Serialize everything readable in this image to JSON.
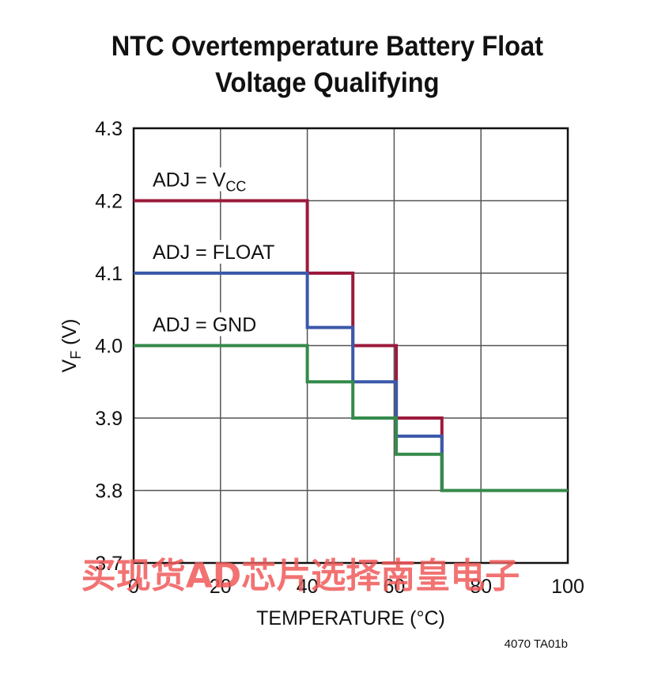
{
  "chart_data": {
    "type": "line",
    "title_lines": [
      "NTC Overtemperature Battery Float",
      "Voltage Qualifying"
    ],
    "xlabel": "TEMPERATURE (°C)",
    "ylabel_main": "V",
    "ylabel_sub": "F",
    "ylabel_unit": " (V)",
    "xlim": [
      0,
      100
    ],
    "ylim": [
      3.7,
      4.3
    ],
    "xticks": [
      0,
      20,
      40,
      60,
      80,
      100
    ],
    "yticks": [
      3.7,
      3.8,
      3.9,
      4.0,
      4.1,
      4.2,
      4.3
    ],
    "xtick_labels": [
      "0",
      "20",
      "40",
      "60",
      "80",
      "100"
    ],
    "ytick_labels": [
      "3.7",
      "3.8",
      "3.9",
      "4.0",
      "4.1",
      "4.2",
      "4.3"
    ],
    "grid": true,
    "series": [
      {
        "label_main": "ADJ = V",
        "label_sub": "CC",
        "color": "#9c1a3c",
        "x": [
          0,
          40,
          40,
          50.5,
          50.5,
          60.5,
          60.5,
          71,
          71,
          100
        ],
        "y": [
          4.2,
          4.2,
          4.1,
          4.1,
          4.0,
          4.0,
          3.9,
          3.9,
          3.8,
          3.8
        ]
      },
      {
        "label_main": "ADJ = FLOAT",
        "label_sub": "",
        "color": "#3b59aa",
        "x": [
          0,
          40,
          40,
          50.5,
          50.5,
          60.5,
          60.5,
          71,
          71,
          100
        ],
        "y": [
          4.1,
          4.1,
          4.025,
          4.025,
          3.95,
          3.95,
          3.875,
          3.875,
          3.8,
          3.8
        ]
      },
      {
        "label_main": "ADJ = GND",
        "label_sub": "",
        "color": "#348a4a",
        "x": [
          0,
          40,
          40,
          50.5,
          50.5,
          60.5,
          60.5,
          71,
          71,
          100
        ],
        "y": [
          4.0,
          4.0,
          3.95,
          3.95,
          3.9,
          3.9,
          3.85,
          3.85,
          3.8,
          3.8
        ]
      }
    ]
  },
  "footer_ref": "4070 TA01b",
  "watermark": "买现货AD芯片选择南皇电子"
}
